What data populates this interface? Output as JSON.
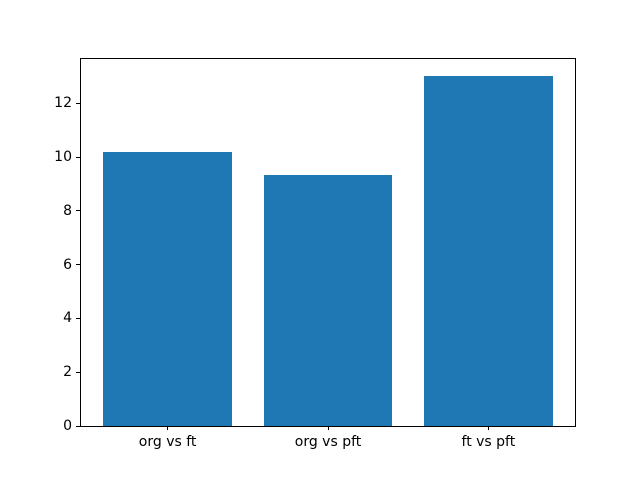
{
  "figure": {
    "background_color": "#ffffff",
    "axes_edge_color": "#000000",
    "tick_color": "#000000",
    "text_color": "#000000"
  },
  "chart_data": {
    "type": "bar",
    "title": "",
    "xlabel": "",
    "ylabel": "",
    "categories": [
      "org vs ft",
      "org vs pft",
      "ft vs pft"
    ],
    "values": [
      10.2,
      9.35,
      13.0
    ],
    "yticks": [
      0,
      2,
      4,
      6,
      8,
      10,
      12
    ],
    "ylim": [
      0,
      13.65
    ],
    "bar_width": 0.8,
    "bar_color": "#1f77b4",
    "grid": false,
    "legend": false
  }
}
